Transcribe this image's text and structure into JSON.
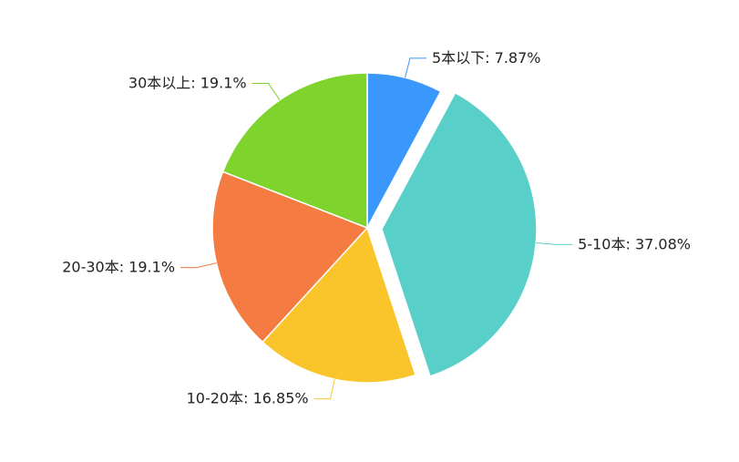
{
  "chart_data": {
    "type": "pie",
    "categories": [
      "5本以下",
      "5-10本",
      "10-20本",
      "20-30本",
      "30本以上"
    ],
    "values": [
      7.87,
      37.08,
      16.85,
      19.1,
      19.1
    ],
    "value_labels": [
      "7.87%",
      "37.08%",
      "16.85%",
      "19.1%",
      "19.1%"
    ],
    "label_separator": ": ",
    "colors": [
      "#3a98fc",
      "#58d0c9",
      "#f9c52b",
      "#f47b42",
      "#7ed32c"
    ],
    "exploded": [
      false,
      true,
      false,
      false,
      false
    ]
  }
}
